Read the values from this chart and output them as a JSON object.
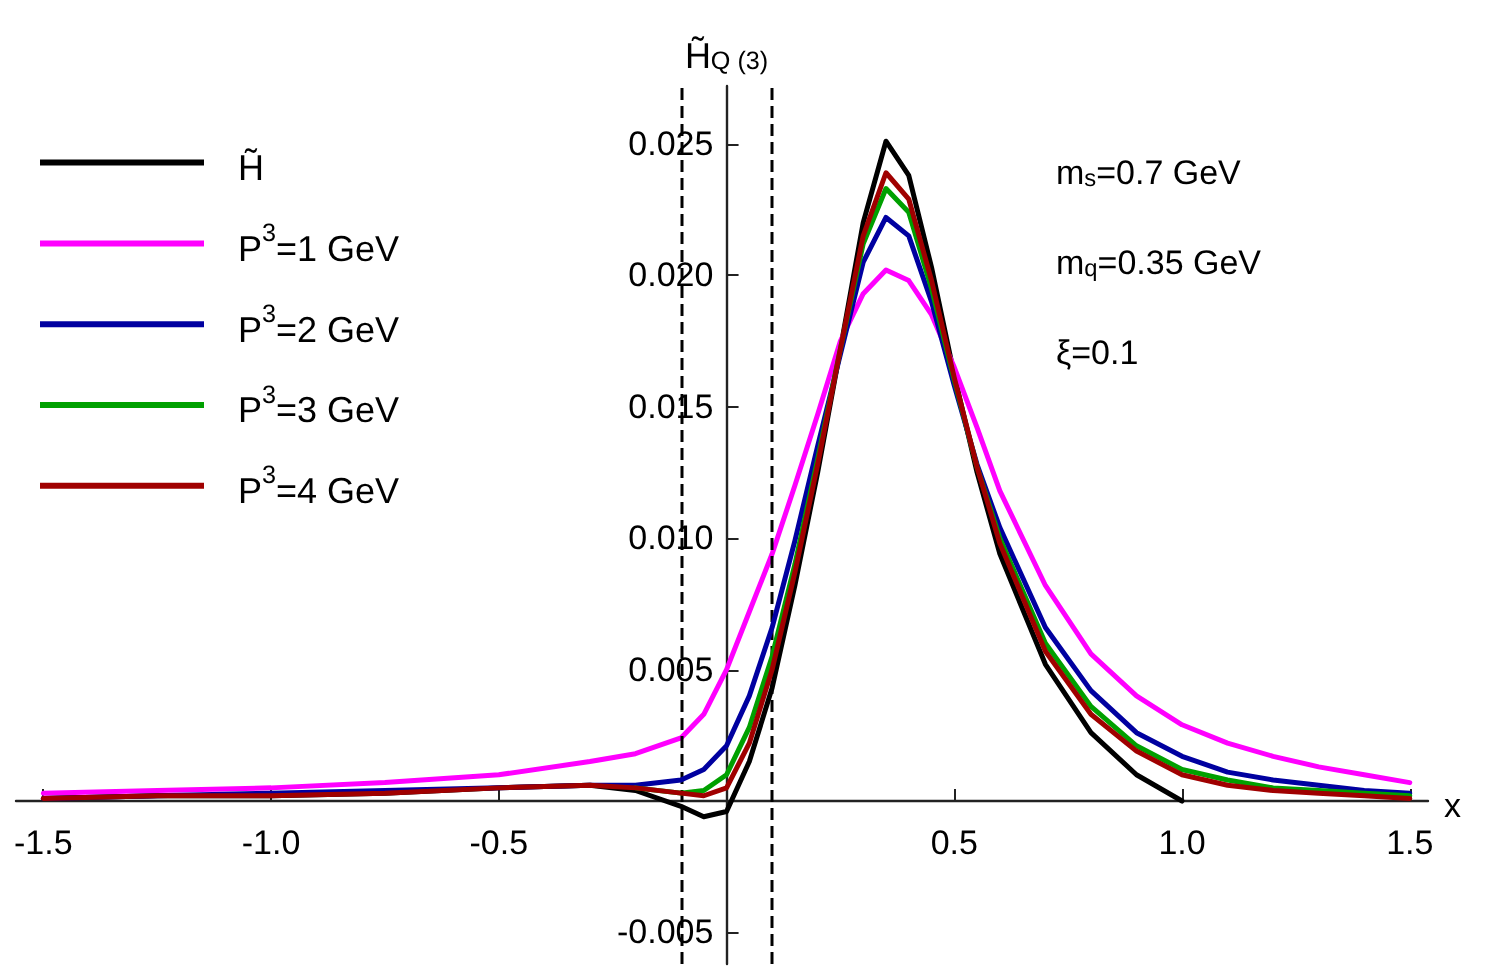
{
  "chart_data": {
    "type": "line",
    "xlabel": "x",
    "ylabel": "H̃$_{Q (3)}$",
    "x": [
      -1.5,
      -1.25,
      -1,
      -0.75,
      -0.5,
      -0.3,
      -0.2,
      -0.1,
      -0.05,
      0,
      0.05,
      0.1,
      0.15,
      0.2,
      0.25,
      0.3,
      0.35,
      0.4,
      0.45,
      0.5,
      0.55,
      0.6,
      0.7,
      0.8,
      0.9,
      1.0,
      1.1,
      1.2,
      1.3,
      1.4,
      1.5
    ],
    "series": [
      {
        "name": "H̃",
        "color": "#000000",
        "values": [
          0.0001,
          0.0002,
          0.0002,
          0.0003,
          0.0005,
          0.0006,
          0.0004,
          -0.0002,
          -0.0006,
          -0.0004,
          0.0015,
          0.0043,
          0.0082,
          0.0125,
          0.0172,
          0.022,
          0.0251,
          0.0238,
          0.0203,
          0.0162,
          0.0125,
          0.0094,
          0.0052,
          0.0026,
          0.001,
          0.0,
          null,
          null,
          null,
          null,
          null
        ]
      },
      {
        "name": "P$^{3}$=1 GeV",
        "color": "#ff00ff",
        "values": [
          0.0003,
          0.0004,
          0.0005,
          0.0007,
          0.001,
          0.0015,
          0.0018,
          0.0024,
          0.0033,
          0.005,
          0.0072,
          0.0094,
          0.012,
          0.0147,
          0.0175,
          0.0193,
          0.0202,
          0.0198,
          0.0185,
          0.0165,
          0.0142,
          0.0118,
          0.0082,
          0.0056,
          0.004,
          0.0029,
          0.0022,
          0.0017,
          0.0013,
          0.001,
          0.0007
        ]
      },
      {
        "name": "P$^{3}$=2 GeV",
        "color": "#0000a0",
        "values": [
          0.0001,
          0.0002,
          0.0003,
          0.0004,
          0.0005,
          0.0006,
          0.0006,
          0.0008,
          0.0012,
          0.0021,
          0.004,
          0.0066,
          0.0099,
          0.0135,
          0.017,
          0.0205,
          0.0222,
          0.0215,
          0.019,
          0.0158,
          0.0128,
          0.0104,
          0.0066,
          0.0042,
          0.0026,
          0.0017,
          0.0011,
          0.0008,
          0.0006,
          0.0004,
          0.0003
        ]
      },
      {
        "name": "P$^{3}$=3 GeV",
        "color": "#00a000",
        "values": [
          null,
          null,
          null,
          null,
          null,
          null,
          0.0005,
          0.0003,
          0.0004,
          0.001,
          0.0028,
          0.0055,
          0.009,
          0.013,
          0.0172,
          0.0212,
          0.0233,
          0.0224,
          0.0195,
          0.016,
          0.0127,
          0.01,
          0.006,
          0.0036,
          0.0021,
          0.0012,
          0.0008,
          0.0005,
          0.0004,
          0.0003,
          0.0002
        ]
      },
      {
        "name": "P$^{3}$=4 GeV",
        "color": "#a00000",
        "values": [
          0.0001,
          0.0002,
          0.0002,
          0.0003,
          0.0005,
          0.0006,
          0.0005,
          0.0003,
          0.0002,
          0.0005,
          0.0022,
          0.005,
          0.0087,
          0.0128,
          0.0172,
          0.0215,
          0.0239,
          0.0229,
          0.0198,
          0.0161,
          0.0127,
          0.0098,
          0.0057,
          0.0033,
          0.0019,
          0.001,
          0.0006,
          0.0004,
          0.0003,
          0.0002,
          0.0001
        ]
      }
    ],
    "xlim": [
      -1.56,
      1.54
    ],
    "xticks": [
      -1.5,
      {
        "value": -1.0,
        "label": "-1.0"
      },
      -0.5,
      0.5,
      {
        "value": 1.0,
        "label": "1.0"
      },
      1.5
    ],
    "ylim": [
      -0.0062,
      0.0272
    ],
    "yticks": [
      -0.005,
      0.005,
      {
        "value": 0.01,
        "label": "0.010"
      },
      0.015,
      {
        "value": 0.02,
        "label": "0.020"
      },
      0.025
    ],
    "ref_lines": [
      {
        "axis": "x",
        "value": -0.1,
        "color": "#000000",
        "line_style": "dashed"
      },
      {
        "axis": "x",
        "value": 0.1,
        "color": "#000000",
        "line_style": "dashed"
      }
    ],
    "annotations": [
      "m$_{s}$=0.7 GeV",
      "m$_{q}$=0.35 GeV",
      "ξ=0.1"
    ],
    "legend": "top left",
    "grid": false
  }
}
